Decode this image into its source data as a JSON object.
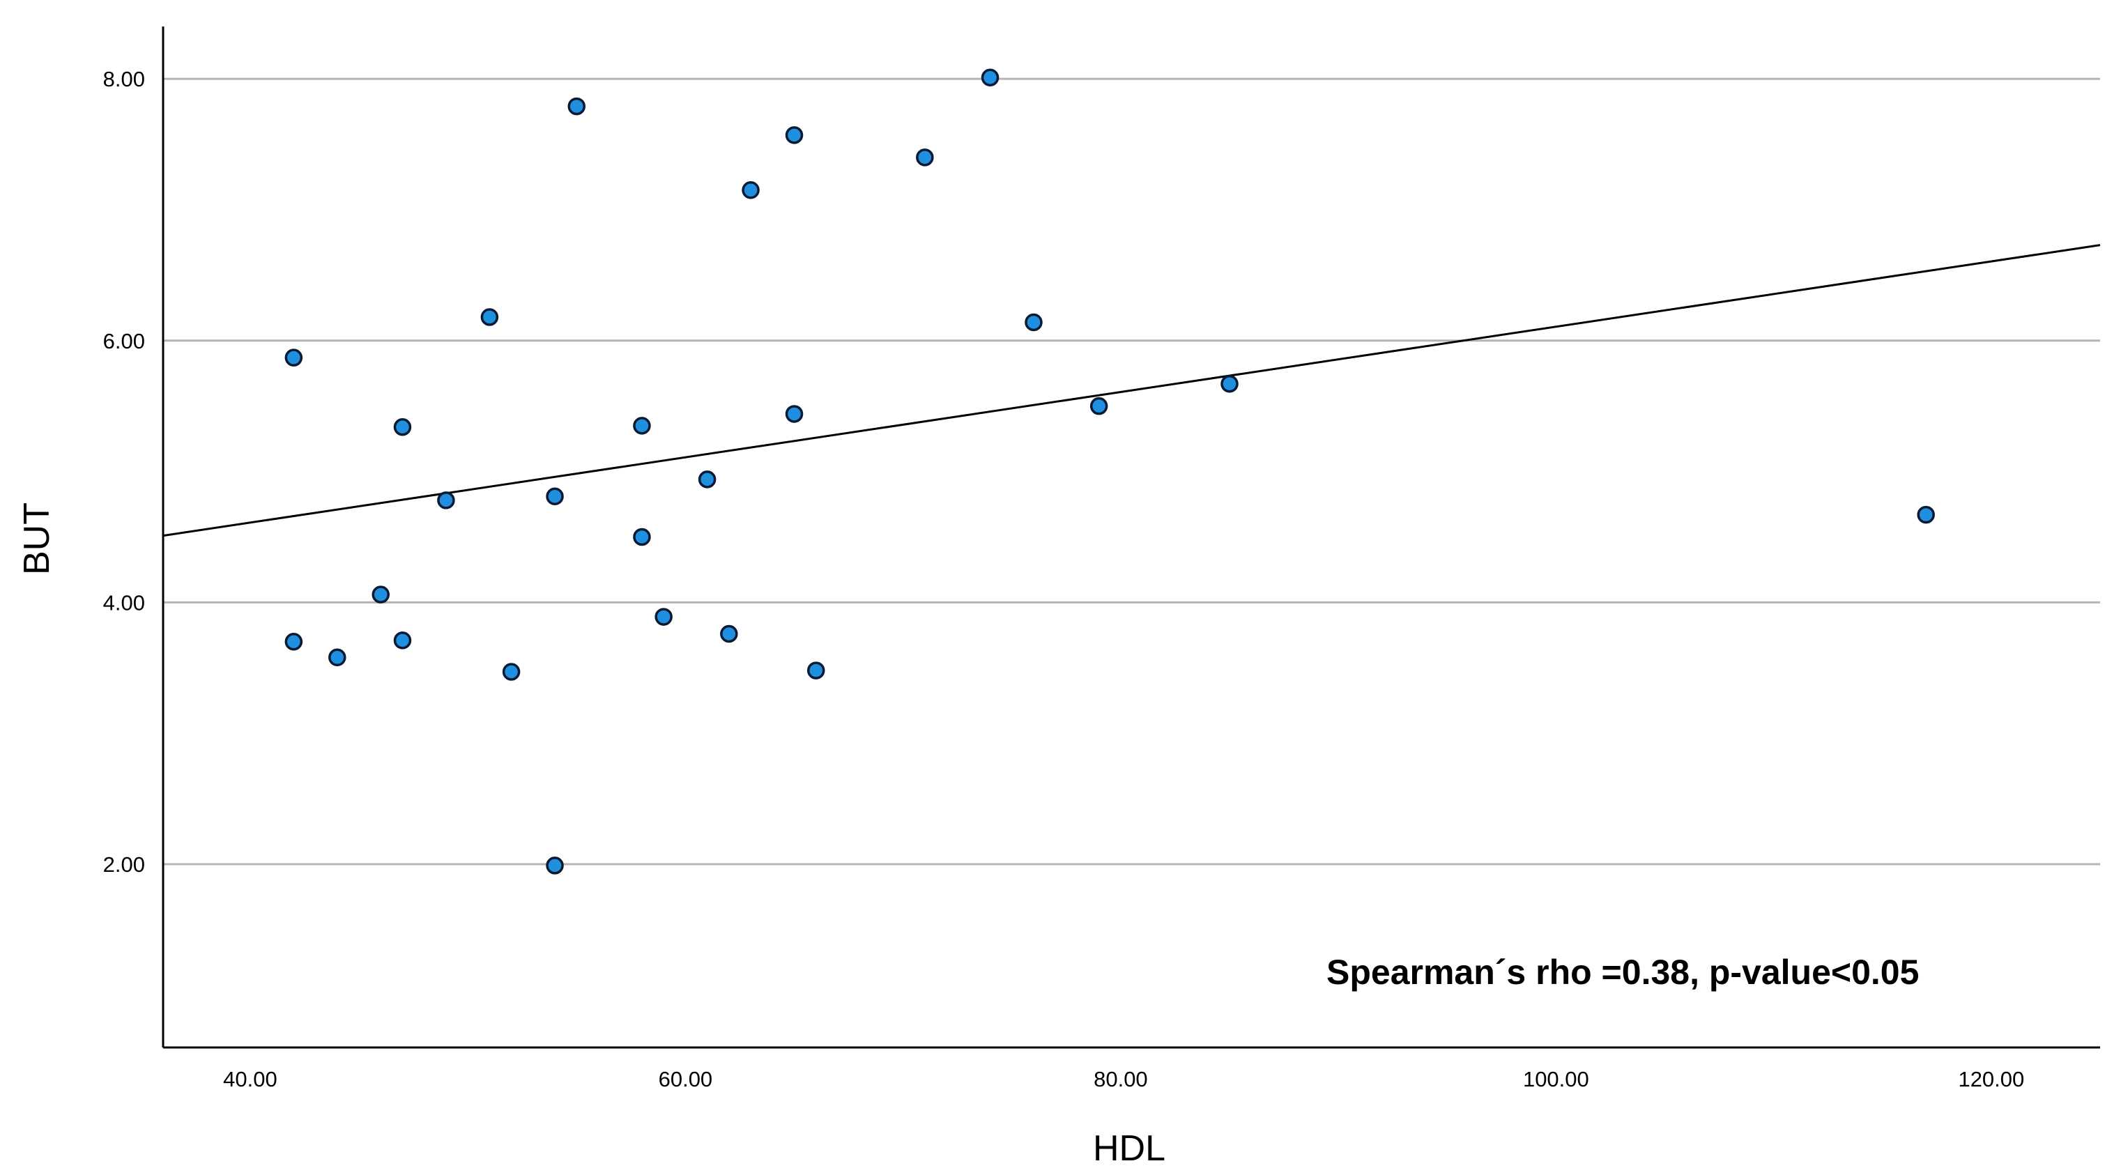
{
  "chart_data": {
    "type": "scatter",
    "title": "",
    "xlabel": "HDL",
    "ylabel": "BUT",
    "xlim": [
      36,
      125
    ],
    "ylim": [
      0.6,
      8.4
    ],
    "xticks": [
      40,
      60,
      80,
      100,
      120
    ],
    "xtick_labels": [
      "40.00",
      "60.00",
      "80.00",
      "100.00",
      "120.00"
    ],
    "yticks": [
      2,
      4,
      6,
      8
    ],
    "ytick_labels": [
      "2.00",
      "4.00",
      "6.00",
      "8.00"
    ],
    "grid": "horizontal",
    "legend": "none",
    "annotation": "Spearman´s rho =0.38, p-value<0.05",
    "colors": {
      "point_fill": "#1f8fe0",
      "point_stroke": "#0a1a33",
      "grid": "#b4b4b4",
      "axis": "#000000",
      "fit_line": "#000000"
    },
    "points": [
      {
        "x": 42,
        "y": 5.87
      },
      {
        "x": 42,
        "y": 3.7
      },
      {
        "x": 44,
        "y": 3.58
      },
      {
        "x": 46,
        "y": 4.06
      },
      {
        "x": 47,
        "y": 5.34
      },
      {
        "x": 47,
        "y": 3.71
      },
      {
        "x": 49,
        "y": 4.78
      },
      {
        "x": 51,
        "y": 6.18
      },
      {
        "x": 52,
        "y": 3.47
      },
      {
        "x": 54,
        "y": 4.81
      },
      {
        "x": 54,
        "y": 1.99
      },
      {
        "x": 55,
        "y": 7.79
      },
      {
        "x": 58,
        "y": 5.35
      },
      {
        "x": 58,
        "y": 4.5
      },
      {
        "x": 59,
        "y": 3.89
      },
      {
        "x": 61,
        "y": 4.94
      },
      {
        "x": 62,
        "y": 3.76
      },
      {
        "x": 63,
        "y": 7.15
      },
      {
        "x": 65,
        "y": 7.57
      },
      {
        "x": 65,
        "y": 5.44
      },
      {
        "x": 66,
        "y": 3.48
      },
      {
        "x": 71,
        "y": 7.4
      },
      {
        "x": 74,
        "y": 8.01
      },
      {
        "x": 76,
        "y": 6.14
      },
      {
        "x": 79,
        "y": 5.5
      },
      {
        "x": 85,
        "y": 5.67
      },
      {
        "x": 117,
        "y": 4.67
      }
    ],
    "fit_line": {
      "x": [
        36,
        125
      ],
      "y": [
        4.51,
        6.73
      ]
    }
  }
}
